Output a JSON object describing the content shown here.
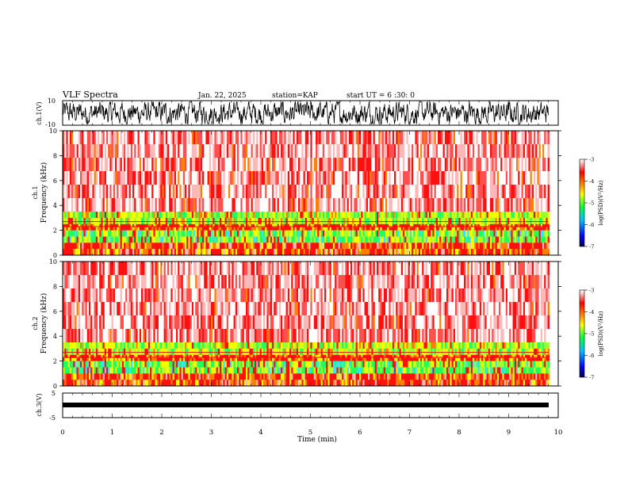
{
  "header": {
    "title": "VLF Spectra",
    "date": "Jan. 22, 2025",
    "station": "station=KAP",
    "start_time": "start UT =  6 :30: 0"
  },
  "chart_data": [
    {
      "type": "line",
      "panel": "ch1-waveform",
      "ylabel": "ch.1(V)",
      "ylim": [
        -10,
        10
      ],
      "y_ticks": [
        "10",
        "-10"
      ],
      "note": "dense noise-like waveform"
    },
    {
      "type": "heatmap",
      "panel": "ch1-spectrogram",
      "ylabel_line1": "ch.1",
      "ylabel_line2": "Frequency (kHz)",
      "ylim": [
        0,
        10
      ],
      "y_ticks": [
        "0",
        "2",
        "4",
        "6",
        "8",
        "10"
      ],
      "colorbar": {
        "label": "log(PSD)(V²/Hz)",
        "range": [
          -7,
          -3
        ],
        "ticks": [
          "-3",
          "-4",
          "-5",
          "-6",
          "-7"
        ]
      },
      "bands_khz": [
        {
          "from": 3.5,
          "to": 10,
          "level": "red-white"
        },
        {
          "from": 2.5,
          "to": 3.5,
          "level": "yellow-green"
        },
        {
          "from": 1.0,
          "to": 2.5,
          "level": "green-red"
        },
        {
          "from": 0,
          "to": 1.0,
          "level": "red-yellow"
        }
      ]
    },
    {
      "type": "heatmap",
      "panel": "ch2-spectrogram",
      "ylabel_line1": "ch.2",
      "ylabel_line2": "Frequency (kHz)",
      "ylim": [
        0,
        10
      ],
      "y_ticks": [
        "0",
        "2",
        "4",
        "6",
        "8",
        "10"
      ],
      "colorbar": {
        "label": "log(PSD)(V²/Hz)",
        "range": [
          -7,
          -3
        ],
        "ticks": [
          "-3",
          "-4",
          "-5",
          "-6",
          "-7"
        ]
      },
      "bands_khz": [
        {
          "from": 3.5,
          "to": 10,
          "level": "red-white"
        },
        {
          "from": 2.5,
          "to": 3.5,
          "level": "yellow-green"
        },
        {
          "from": 1.0,
          "to": 2.5,
          "level": "green-red"
        },
        {
          "from": 0,
          "to": 1.0,
          "level": "red-yellow"
        }
      ]
    },
    {
      "type": "line",
      "panel": "ch3-waveform",
      "ylabel": "ch.3(V)",
      "ylim": [
        -5,
        5
      ],
      "y_ticks": [
        "5",
        "-5"
      ],
      "note": "flat band near -1 V"
    }
  ],
  "x_axis": {
    "label": "Time (min)",
    "range": [
      0,
      10
    ],
    "ticks": [
      "0",
      "1",
      "2",
      "3",
      "4",
      "5",
      "6",
      "7",
      "8",
      "9",
      "10"
    ],
    "data_end": 9.8
  },
  "colors": {
    "colormap": [
      "#000060",
      "#0000ff",
      "#00c0ff",
      "#00ff40",
      "#c8ff00",
      "#ffff00",
      "#ff8000",
      "#ff0000",
      "#ffc0c0",
      "#ffffff"
    ]
  }
}
